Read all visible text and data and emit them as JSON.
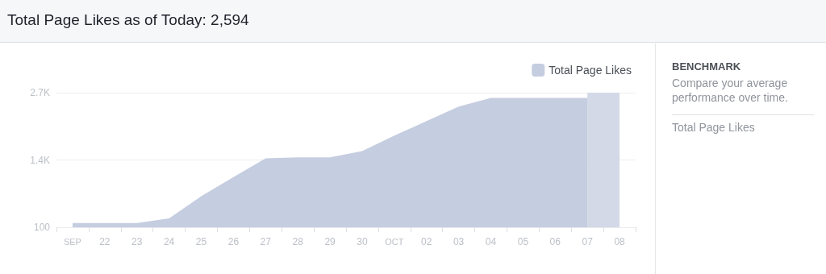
{
  "chart_data": {
    "type": "area",
    "title": "Total Page Likes as of Today: 2,594",
    "categories": [
      "SEP",
      "22",
      "23",
      "24",
      "25",
      "26",
      "27",
      "28",
      "29",
      "30",
      "OCT",
      "02",
      "03",
      "04",
      "05",
      "06",
      "07",
      "08"
    ],
    "series": [
      {
        "name": "Total Page Likes",
        "color": "#c5cde0",
        "values": [
          180,
          180,
          180,
          270,
          700,
          1070,
          1430,
          1450,
          1450,
          1570,
          1870,
          2150,
          2430,
          2600,
          2600,
          2600,
          2600,
          null
        ]
      }
    ],
    "ylim": [
      100,
      2700
    ],
    "yticks": [
      {
        "value": 100,
        "label": "100"
      },
      {
        "value": 1400,
        "label": "1.4K"
      },
      {
        "value": 2700,
        "label": "2.7K"
      }
    ],
    "bands": [
      {
        "axis": "x",
        "from": "07",
        "to": "08",
        "color": "#d3d9e6"
      }
    ],
    "grid": "y",
    "legend": "top right",
    "annotations": [
      "BENCHMARK",
      "Compare your average performance over time.",
      "Total Page Likes"
    ]
  }
}
